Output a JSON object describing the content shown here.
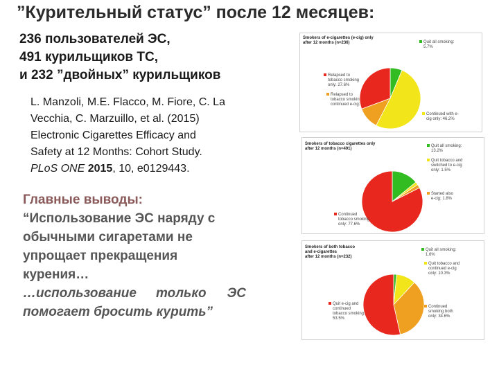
{
  "title": "”Курительный статус” после 12 месяцев:",
  "stats": [
    "236 пользователей ЭС,",
    "491 курильщиков ТС,",
    "и 232 ”двойных” курильщиков"
  ],
  "citation": {
    "line1": "L. Manzoli, M.E. Flacco, M. Fiore, C. La",
    "line2": "Vecchia, C. Marzuillo, et al. (2015)",
    "line3": "Electronic Cigarettes Efficacy and",
    "line4": "Safety at 12 Months: Cohort Study.",
    "journal": "PLoS ONE",
    "year": "2015",
    "rest": ", 10, e0129443."
  },
  "conclusions": {
    "heading": "Главные выводы:",
    "lines": [
      "“Использование ЭС наряду с",
      "обычными сигаретами не",
      "упрощает прекращения",
      "курения…"
    ],
    "line5_a": "…использование",
    "line5_b": "только",
    "line5_c": "ЭС",
    "line6": "помогает бросить курить”"
  },
  "chart_data": [
    {
      "type": "pie",
      "title_lines": [
        "Smokers of e-cigarettes (e-cig) only",
        "after 12 months (n=236)"
      ],
      "slices": [
        {
          "label_lines": [
            "Quit all smoking:",
            "5.7%"
          ],
          "value": 5.7,
          "color": "#33bb22"
        },
        {
          "label_lines": [
            "Continued with e-",
            "cig only: 46.2%"
          ],
          "value": 46.2,
          "color": "#f2e51a"
        },
        {
          "label_lines": [
            "Relapsed to",
            "tobacco smoking and",
            "continued e-cig: 10.6%"
          ],
          "value": 10.6,
          "color": "#f0a020"
        },
        {
          "label_lines": [
            "Relapsed to",
            "tobacco smoking",
            "only: 27.6%"
          ],
          "value": 27.6,
          "color": "#e8281e"
        }
      ]
    },
    {
      "type": "pie",
      "title_lines": [
        "Smokers of tobacco cigarettes only",
        "after 12 months (n=491)"
      ],
      "slices": [
        {
          "label_lines": [
            "Quit all smoking:",
            "13.2%"
          ],
          "value": 13.2,
          "color": "#33bb22"
        },
        {
          "label_lines": [
            "Quit tobacco and",
            "switched to e-cig",
            "only: 1.5%"
          ],
          "value": 1.5,
          "color": "#f2e51a"
        },
        {
          "label_lines": [
            "Started also",
            "e-cig: 1.8%"
          ],
          "value": 1.8,
          "color": "#f0a020"
        },
        {
          "label_lines": [
            "Continued",
            "tobacco smoking",
            "only: 77.6%"
          ],
          "value": 77.6,
          "color": "#e8281e"
        }
      ]
    },
    {
      "type": "pie",
      "title_lines": [
        "Smokers of both tobacco",
        "and e-cigarettes",
        "after 12 months (n=232)"
      ],
      "slices": [
        {
          "label_lines": [
            "Quit all smoking:",
            "1.6%"
          ],
          "value": 1.6,
          "color": "#33bb22"
        },
        {
          "label_lines": [
            "Quit tobacco and",
            "continued e-cig",
            "only: 10.3%"
          ],
          "value": 10.3,
          "color": "#f2e51a"
        },
        {
          "label_lines": [
            "Continued",
            "smoking both",
            "only: 34.6%"
          ],
          "value": 34.6,
          "color": "#f0a020"
        },
        {
          "label_lines": [
            "Quit e-cig and",
            "continued",
            "tobacco smoking:",
            "53.5%"
          ],
          "value": 53.5,
          "color": "#e8281e"
        }
      ]
    }
  ]
}
